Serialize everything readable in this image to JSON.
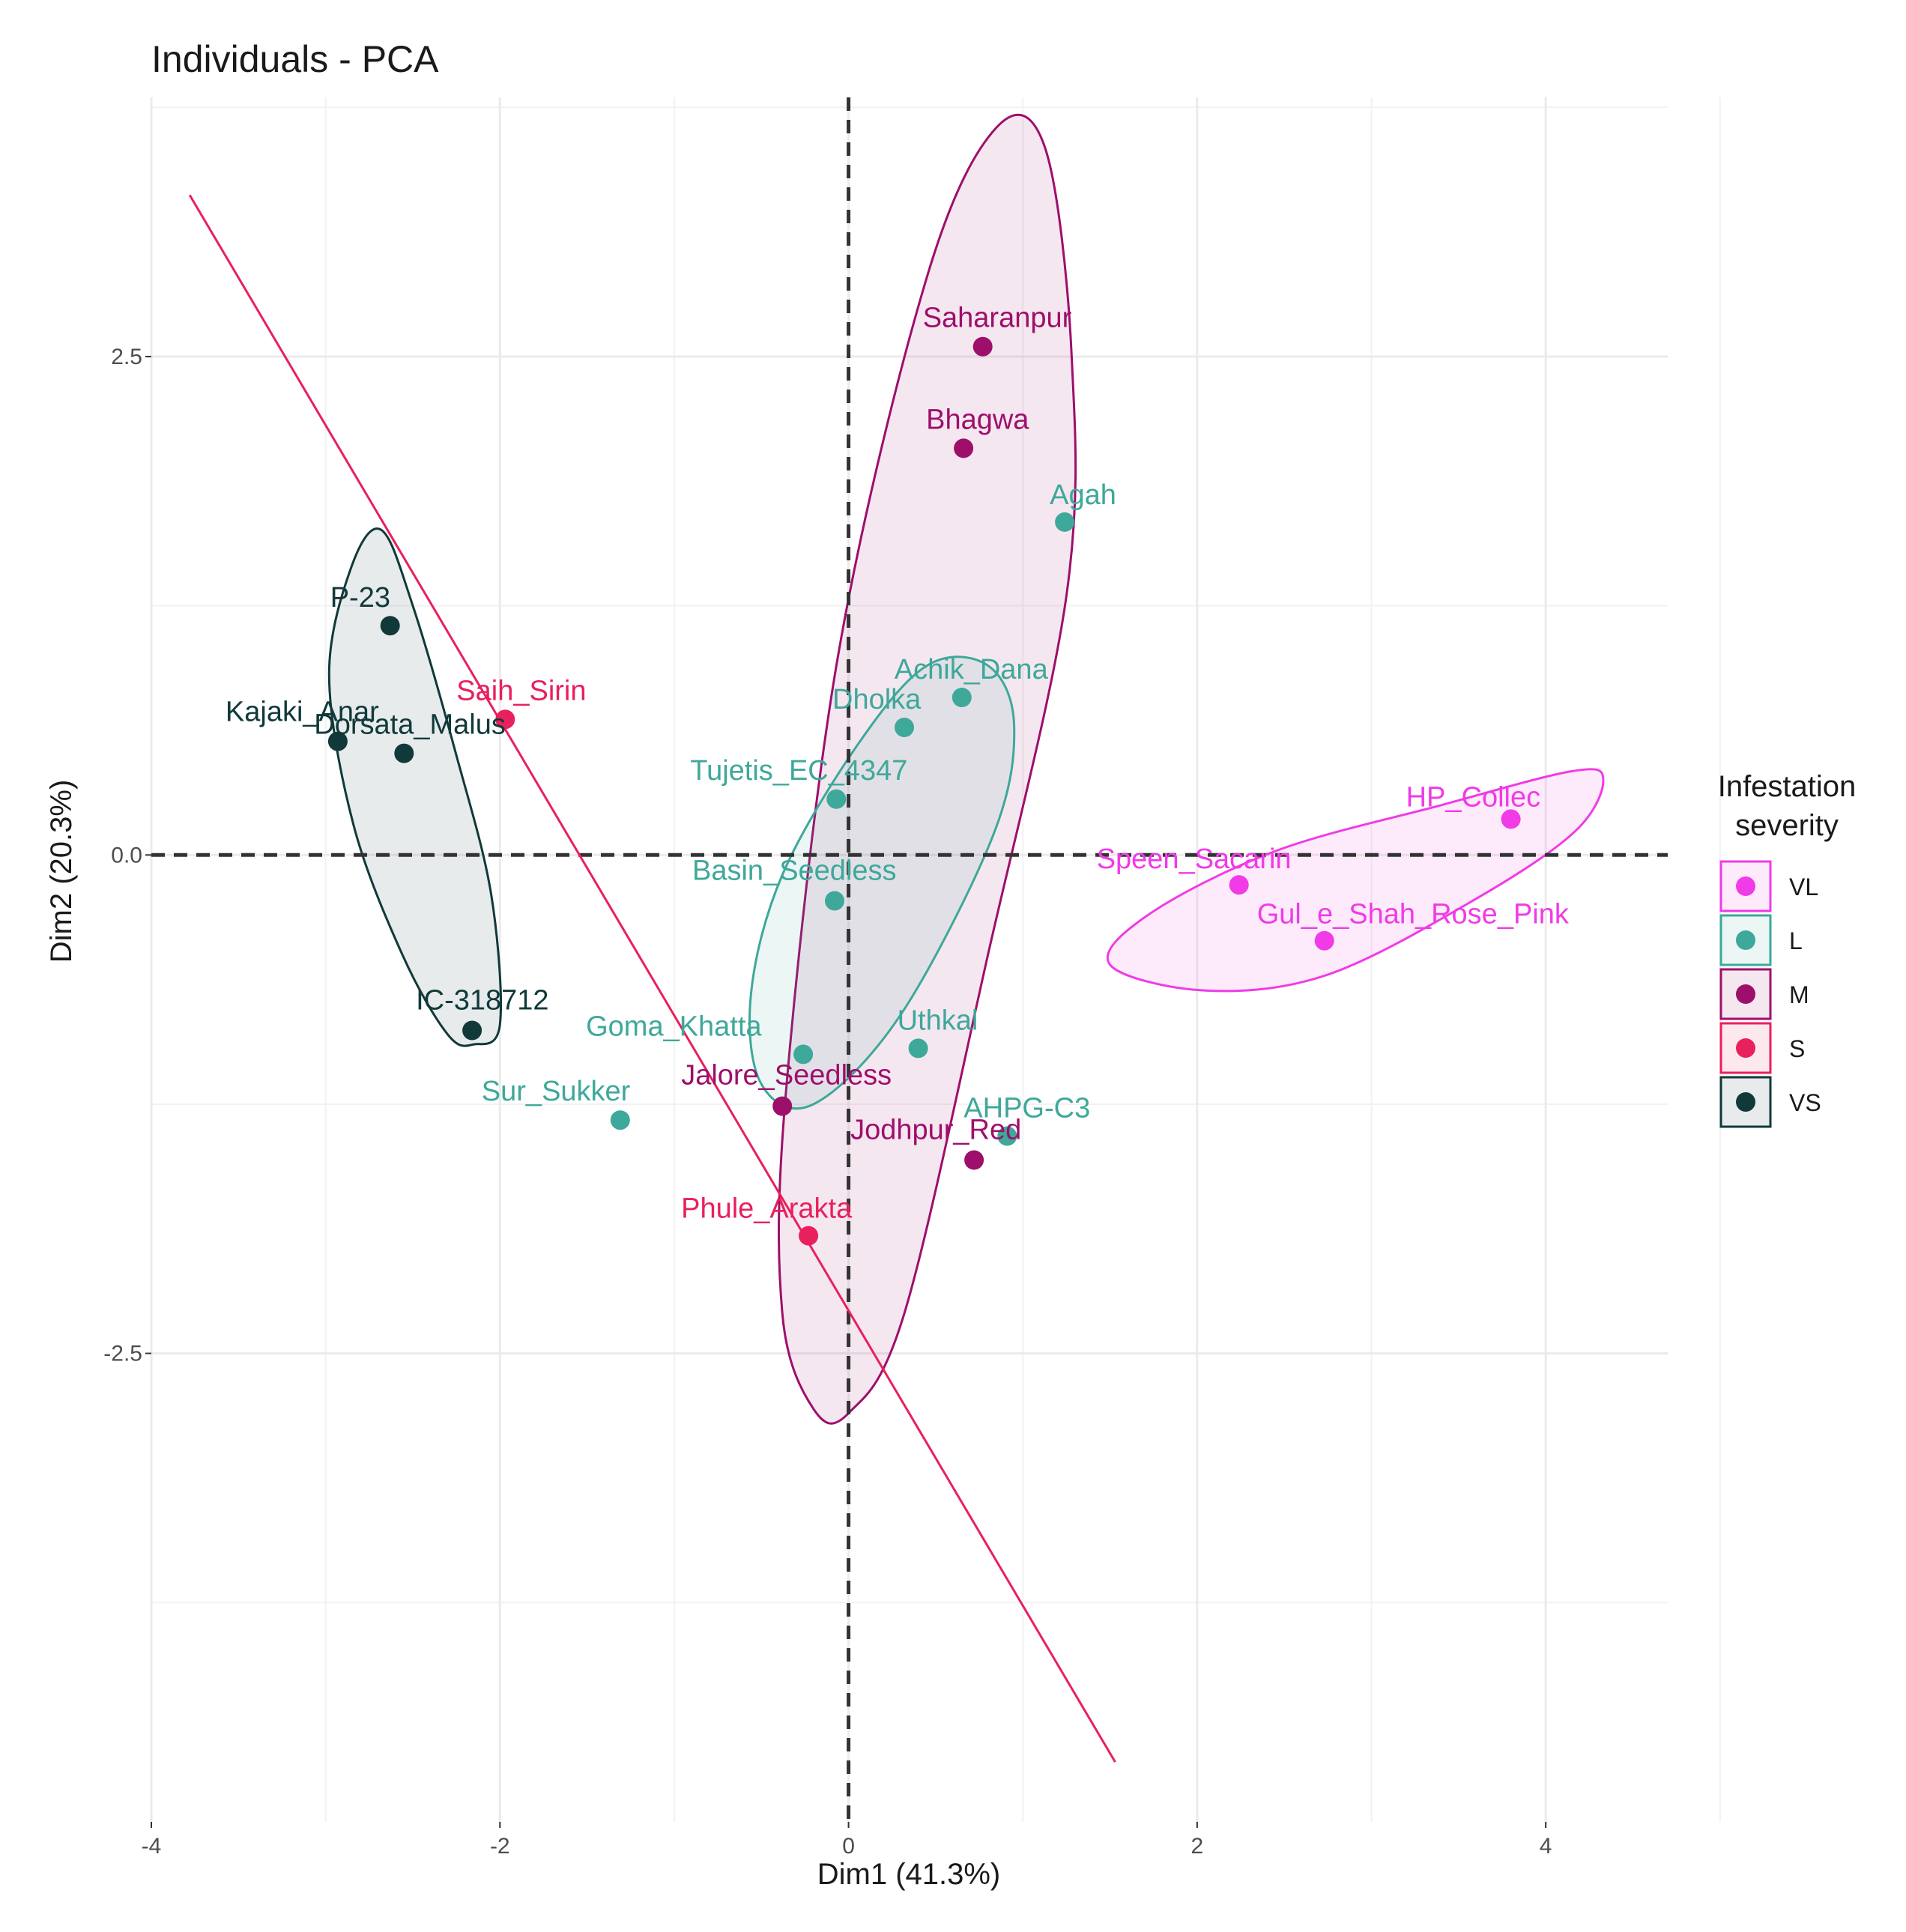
{
  "chart_data": {
    "type": "scatter",
    "title": "Individuals - PCA",
    "xlabel": "Dim1 (41.3%)",
    "ylabel": "Dim2 (20.3%)",
    "xlim": [
      -4.0,
      4.7
    ],
    "ylim": [
      -4.85,
      3.8
    ],
    "x_ticks": [
      -4,
      -2,
      0,
      2,
      4
    ],
    "x_tick_labels": [
      "-4",
      "-2",
      "0",
      "2",
      "4"
    ],
    "y_ticks": [
      -2.5,
      0.0,
      2.5
    ],
    "y_tick_labels": [
      "-2.5",
      "0.0",
      "2.5"
    ],
    "grid": true,
    "reference_lines": {
      "x": 0,
      "y": 0,
      "style": "dashed"
    },
    "legend": {
      "title_lines": [
        "Infestation",
        "severity"
      ],
      "position": "right",
      "entries": [
        {
          "key": "VL",
          "label": "VL",
          "color": "#F03BE6"
        },
        {
          "key": "L",
          "label": "L",
          "color": "#3EA89A"
        },
        {
          "key": "M",
          "label": "M",
          "color": "#9E0F6B"
        },
        {
          "key": "S",
          "label": "S",
          "color": "#E8205C"
        },
        {
          "key": "VS",
          "label": "VS",
          "color": "#11393A"
        }
      ]
    },
    "series": [
      {
        "name": "VL",
        "color": "#F03BE6",
        "points": [
          {
            "label": "Speen_Sacarin",
            "x": 2.24,
            "y": -0.15
          },
          {
            "label": "HP_Collec",
            "x": 3.8,
            "y": 0.18
          },
          {
            "label": "Gul_e_Shah_Rose_Pink",
            "x": 2.73,
            "y": -0.43
          }
        ]
      },
      {
        "name": "L",
        "color": "#3EA89A",
        "points": [
          {
            "label": "Agah",
            "x": 1.24,
            "y": 1.67
          },
          {
            "label": "Achik_Dana",
            "x": 0.65,
            "y": 0.79
          },
          {
            "label": "Dholka",
            "x": 0.32,
            "y": 0.64
          },
          {
            "label": "Tujetis_EC_4347",
            "x": -0.07,
            "y": 0.28
          },
          {
            "label": "Basin_Seedless",
            "x": -0.08,
            "y": -0.23
          },
          {
            "label": "Uthkal",
            "x": 0.4,
            "y": -0.97
          },
          {
            "label": "Goma_Khatta",
            "x": -0.26,
            "y": -1.0
          },
          {
            "label": "Sur_Sukker",
            "x": -1.31,
            "y": -1.33
          },
          {
            "label": "AHPG-C3",
            "x": 0.91,
            "y": -1.41
          }
        ]
      },
      {
        "name": "M",
        "color": "#9E0F6B",
        "points": [
          {
            "label": "Saharanpur",
            "x": 0.77,
            "y": 2.55
          },
          {
            "label": "Bhagwa",
            "x": 0.66,
            "y": 2.04
          },
          {
            "label": "Jalore_Seedless",
            "x": -0.38,
            "y": -1.26
          },
          {
            "label": "Jodhpur_Red",
            "x": 0.72,
            "y": -1.53
          }
        ]
      },
      {
        "name": "S",
        "color": "#E8205C",
        "points": [
          {
            "label": "Saih_Sirin",
            "x": -1.97,
            "y": 0.68
          },
          {
            "label": "Phule_Arakta",
            "x": -0.23,
            "y": -1.91
          }
        ]
      },
      {
        "name": "VS",
        "color": "#11393A",
        "points": [
          {
            "label": "P-23",
            "x": -2.63,
            "y": 1.15
          },
          {
            "label": "Kajaki_Anar",
            "x": -2.93,
            "y": 0.57
          },
          {
            "label": "Dorsata_Malus",
            "x": -2.55,
            "y": 0.51
          },
          {
            "label": "IC-318712",
            "x": -2.16,
            "y": -0.88
          }
        ]
      }
    ],
    "ellipses": [
      {
        "group": "VS",
        "points": [
          [
            -2.15,
            -0.95
          ],
          [
            -2.0,
            -0.85
          ],
          [
            -2.05,
            -0.2
          ],
          [
            -2.25,
            0.5
          ],
          [
            -2.5,
            1.25
          ],
          [
            -2.68,
            1.63
          ],
          [
            -2.85,
            1.45
          ],
          [
            -2.98,
            0.9
          ],
          [
            -2.84,
            0.15
          ],
          [
            -2.56,
            -0.5
          ],
          [
            -2.3,
            -0.9
          ]
        ]
      },
      {
        "group": "M",
        "points": [
          [
            0.0,
            -2.8
          ],
          [
            0.32,
            -2.3
          ],
          [
            0.8,
            -0.5
          ],
          [
            1.25,
            1.3
          ],
          [
            1.28,
            2.5
          ],
          [
            1.13,
            3.54
          ],
          [
            0.85,
            3.65
          ],
          [
            0.45,
            2.9
          ],
          [
            -0.06,
            1.0
          ],
          [
            -0.36,
            -1.2
          ],
          [
            -0.38,
            -2.3
          ],
          [
            -0.2,
            -2.78
          ]
        ]
      },
      {
        "group": "L",
        "points": [
          [
            -0.2,
            -1.25
          ],
          [
            0.3,
            -0.8
          ],
          [
            0.83,
            0.1
          ],
          [
            0.95,
            0.65
          ],
          [
            0.8,
            0.95
          ],
          [
            0.45,
            0.95
          ],
          [
            0.05,
            0.55
          ],
          [
            -0.38,
            -0.1
          ],
          [
            -0.56,
            -0.7
          ],
          [
            -0.5,
            -1.15
          ]
        ]
      },
      {
        "group": "VL",
        "points": [
          [
            1.5,
            -0.55
          ],
          [
            2.05,
            -0.68
          ],
          [
            2.75,
            -0.6
          ],
          [
            3.6,
            -0.22
          ],
          [
            4.17,
            0.12
          ],
          [
            4.33,
            0.38
          ],
          [
            4.15,
            0.42
          ],
          [
            3.4,
            0.25
          ],
          [
            2.45,
            0.02
          ],
          [
            1.72,
            -0.3
          ]
        ]
      }
    ],
    "fit_line": {
      "color": "#E8205C",
      "from": [
        -3.78,
        3.31
      ],
      "to": [
        1.53,
        -4.55
      ]
    }
  }
}
